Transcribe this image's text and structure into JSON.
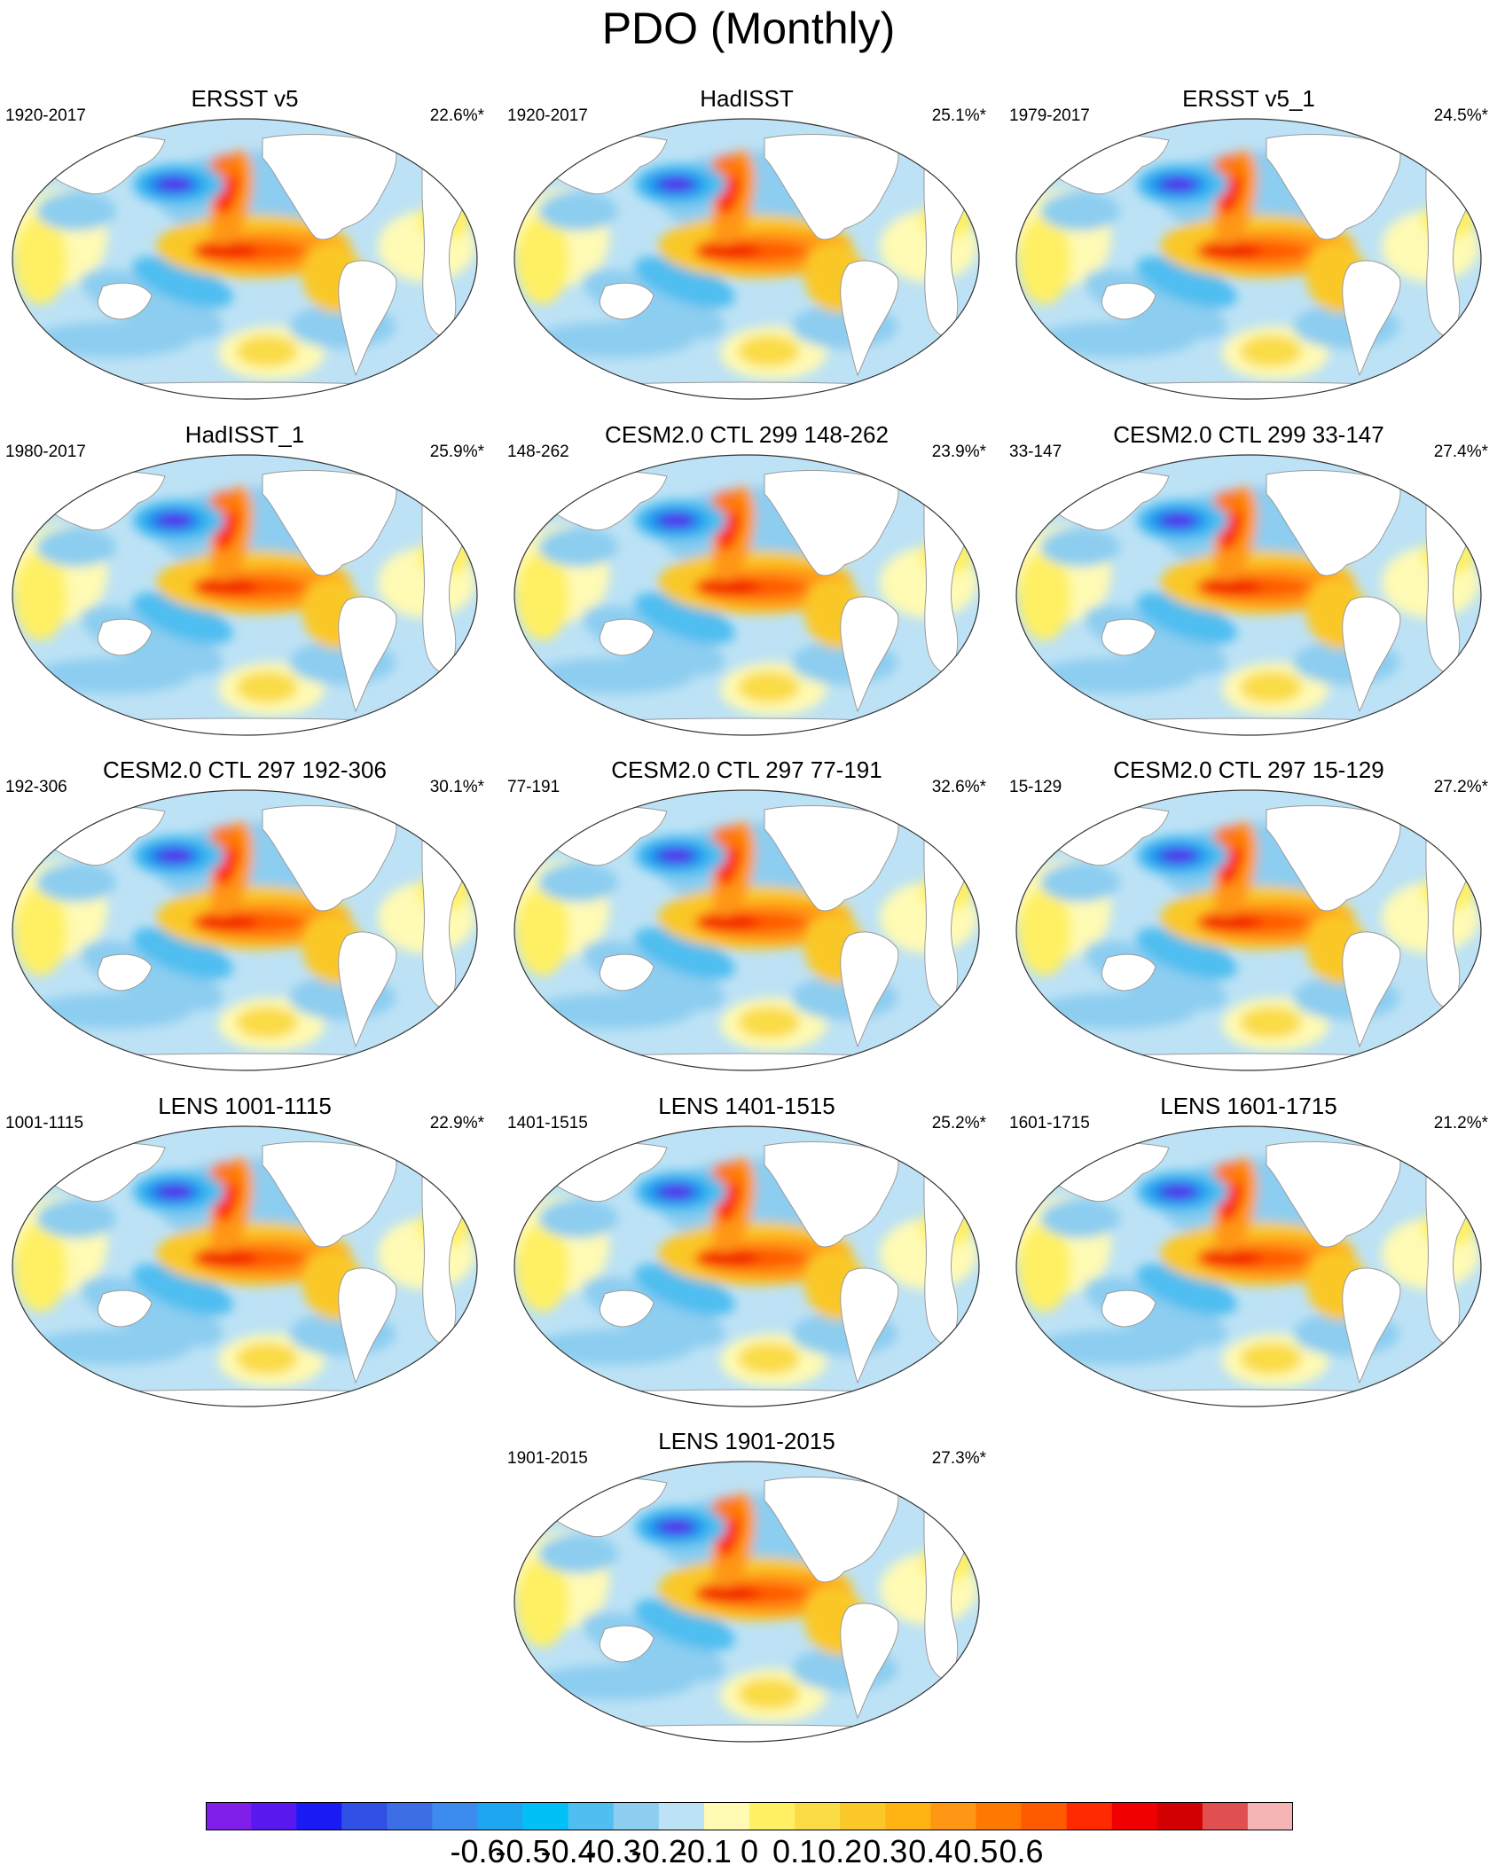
{
  "title": "PDO (Monthly)",
  "panels": [
    {
      "title": "ERSST v5",
      "period": "1920-2017",
      "percent": "22.6%*"
    },
    {
      "title": "HadISST",
      "period": "1920-2017",
      "percent": "25.1%*"
    },
    {
      "title": "ERSST v5_1",
      "period": "1979-2017",
      "percent": "24.5%*"
    },
    {
      "title": "HadISST_1",
      "period": "1980-2017",
      "percent": "25.9%*"
    },
    {
      "title": "CESM2.0 CTL 299 148-262",
      "period": "148-262",
      "percent": "23.9%*"
    },
    {
      "title": "CESM2.0 CTL 299 33-147",
      "period": "33-147",
      "percent": "27.4%*"
    },
    {
      "title": "CESM2.0 CTL 297 192-306",
      "period": "192-306",
      "percent": "30.1%*"
    },
    {
      "title": "CESM2.0 CTL 297 77-191",
      "period": "77-191",
      "percent": "32.6%*"
    },
    {
      "title": "CESM2.0 CTL 297 15-129",
      "period": "15-129",
      "percent": "27.2%*"
    },
    {
      "title": "LENS 1001-1115",
      "period": "1001-1115",
      "percent": "22.9%*"
    },
    {
      "title": "LENS 1401-1515",
      "period": "1401-1515",
      "percent": "25.2%*"
    },
    {
      "title": "LENS 1601-1715",
      "period": "1601-1715",
      "percent": "21.2%*"
    },
    {
      "title": "LENS 1901-2015",
      "period": "1901-2015",
      "percent": "27.3%*"
    }
  ],
  "colorbar": {
    "colors": [
      "#7f1ee8",
      "#5a18f0",
      "#1a1af5",
      "#3050e6",
      "#3c6ee6",
      "#3c8cf0",
      "#1ea5f0",
      "#00c0f5",
      "#50bef0",
      "#8ccdf0",
      "#bde2f5",
      "#fffab4",
      "#fff064",
      "#fadc46",
      "#fac828",
      "#ffb414",
      "#ff9614",
      "#ff7800",
      "#ff5a00",
      "#ff2a00",
      "#f00000",
      "#d20000",
      "#e05050",
      "#f5b4b4"
    ],
    "labels": [
      "-0.6",
      "-0.5",
      "-0.4",
      "-0.3",
      "-0.2",
      "-0.1",
      "0",
      "0.1",
      "0.2",
      "0.3",
      "0.4",
      "0.5",
      "0.6"
    ]
  }
}
